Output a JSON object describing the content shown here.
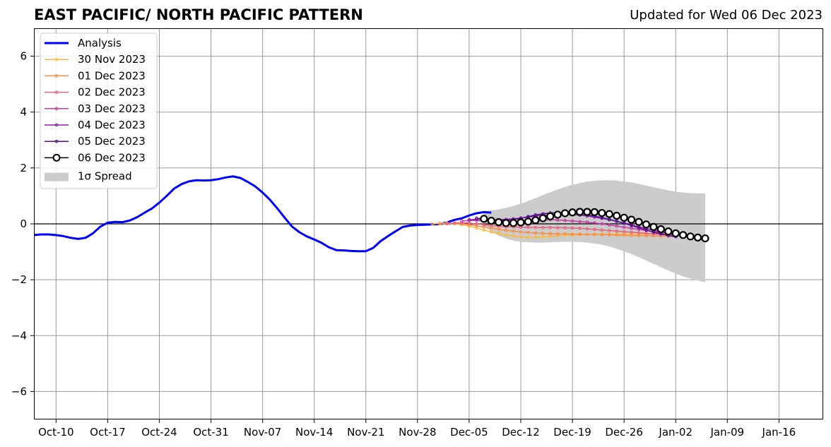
{
  "chart_data": {
    "type": "line",
    "title": "EAST PACIFIC/ NORTH PACIFIC PATTERN",
    "subtitle": "Updated for Wed 06 Dec 2023",
    "xlabel": "",
    "ylabel": "",
    "grid": true,
    "legend_placement": "top-left",
    "xlim": [
      "2023-10-07",
      "2024-01-22"
    ],
    "ylim": [
      -7,
      7
    ],
    "yticks": [
      -6,
      -4,
      -2,
      0,
      2,
      4,
      6
    ],
    "ytick_labels": [
      "−6",
      "−4",
      "−2",
      "0",
      "2",
      "4",
      "6"
    ],
    "xticks": [
      "2023-10-10",
      "2023-10-17",
      "2023-10-24",
      "2023-10-31",
      "2023-11-07",
      "2023-11-14",
      "2023-11-21",
      "2023-11-28",
      "2023-12-05",
      "2023-12-12",
      "2023-12-19",
      "2023-12-26",
      "2024-01-02",
      "2024-01-09",
      "2024-01-16"
    ],
    "xtick_labels": [
      "Oct-10",
      "Oct-17",
      "Oct-24",
      "Oct-31",
      "Nov-07",
      "Nov-14",
      "Nov-21",
      "Nov-28",
      "Dec-05",
      "Dec-12",
      "Dec-19",
      "Dec-26",
      "Jan-02",
      "Jan-09",
      "Jan-16"
    ],
    "series": [
      {
        "name": "Analysis",
        "color": "#0000ff",
        "marker": "none",
        "start": "2023-10-07",
        "values": [
          -0.4,
          -0.38,
          -0.38,
          -0.4,
          -0.44,
          -0.5,
          -0.54,
          -0.5,
          -0.34,
          -0.1,
          0.04,
          0.07,
          0.06,
          0.12,
          0.24,
          0.4,
          0.55,
          0.76,
          1.0,
          1.26,
          1.42,
          1.52,
          1.56,
          1.55,
          1.56,
          1.6,
          1.66,
          1.7,
          1.64,
          1.5,
          1.34,
          1.12,
          0.86,
          0.55,
          0.22,
          -0.1,
          -0.3,
          -0.45,
          -0.56,
          -0.68,
          -0.84,
          -0.94,
          -0.95,
          -0.97,
          -0.98,
          -0.98,
          -0.86,
          -0.62,
          -0.44,
          -0.27,
          -0.11,
          -0.06,
          -0.04,
          -0.03,
          -0.02,
          -0.01,
          0.05,
          0.14,
          0.2,
          0.3,
          0.38,
          0.42,
          0.4
        ]
      },
      {
        "name": "30 Nov 2023",
        "color": "#fcb93e",
        "marker": "small",
        "start": "2023-11-30",
        "values": [
          0.0,
          0.02,
          0.03,
          0.0,
          -0.03,
          -0.08,
          -0.15,
          -0.22,
          -0.29,
          -0.35,
          -0.4,
          -0.44,
          -0.47,
          -0.48,
          -0.48,
          -0.47,
          -0.45,
          -0.43,
          -0.41,
          -0.4,
          -0.39,
          -0.38,
          -0.37,
          -0.37,
          -0.37,
          -0.37,
          -0.37,
          -0.37,
          -0.37,
          -0.37,
          -0.37,
          -0.36,
          -0.35
        ]
      },
      {
        "name": "01 Dec 2023",
        "color": "#f98e47",
        "marker": "small",
        "start": "2023-12-01",
        "values": [
          0.0,
          0.02,
          0.02,
          0.0,
          -0.03,
          -0.07,
          -0.11,
          -0.15,
          -0.19,
          -0.23,
          -0.26,
          -0.29,
          -0.31,
          -0.33,
          -0.34,
          -0.35,
          -0.36,
          -0.36,
          -0.37,
          -0.37,
          -0.38,
          -0.38,
          -0.39,
          -0.39,
          -0.4,
          -0.41,
          -0.42,
          -0.42,
          -0.43,
          -0.43,
          -0.44,
          -0.44
        ]
      },
      {
        "name": "02 Dec 2023",
        "color": "#e5617e",
        "marker": "small",
        "start": "2023-12-02",
        "values": [
          0.0,
          0.03,
          0.04,
          0.03,
          0.0,
          -0.03,
          -0.06,
          -0.08,
          -0.1,
          -0.11,
          -0.12,
          -0.12,
          -0.13,
          -0.13,
          -0.13,
          -0.14,
          -0.14,
          -0.15,
          -0.16,
          -0.18,
          -0.2,
          -0.22,
          -0.24,
          -0.26,
          -0.28,
          -0.3,
          -0.32,
          -0.34,
          -0.36,
          -0.38,
          -0.4,
          -0.42
        ]
      },
      {
        "name": "03 Dec 2023",
        "color": "#c23b9e",
        "marker": "small",
        "start": "2023-12-04",
        "values": [
          0.1,
          0.12,
          0.12,
          0.1,
          0.08,
          0.07,
          0.07,
          0.08,
          0.1,
          0.12,
          0.14,
          0.15,
          0.15,
          0.14,
          0.12,
          0.1,
          0.08,
          0.06,
          0.03,
          0.0,
          -0.04,
          -0.08,
          -0.12,
          -0.16,
          -0.2,
          -0.24,
          -0.28,
          -0.32,
          -0.36,
          -0.4
        ]
      },
      {
        "name": "04 Dec 2023",
        "color": "#8e19a8",
        "marker": "small",
        "start": "2023-12-05",
        "values": [
          0.15,
          0.16,
          0.16,
          0.15,
          0.15,
          0.16,
          0.18,
          0.21,
          0.24,
          0.28,
          0.31,
          0.33,
          0.34,
          0.34,
          0.33,
          0.31,
          0.28,
          0.24,
          0.2,
          0.15,
          0.09,
          0.03,
          -0.04,
          -0.11,
          -0.17,
          -0.23,
          -0.29,
          -0.35,
          -0.4
        ]
      },
      {
        "name": "05 Dec 2023",
        "color": "#4f0c8c",
        "marker": "small",
        "start": "2023-12-06",
        "values": [
          0.2,
          0.18,
          0.14,
          0.12,
          0.12,
          0.15,
          0.2,
          0.26,
          0.32,
          0.36,
          0.39,
          0.4,
          0.4,
          0.39,
          0.36,
          0.32,
          0.28,
          0.22,
          0.16,
          0.09,
          0.02,
          -0.06,
          -0.14,
          -0.22,
          -0.3,
          -0.36,
          -0.42,
          -0.46
        ]
      },
      {
        "name": "06 Dec 2023",
        "color": "#000000",
        "marker": "large",
        "start": "2023-12-07",
        "values": [
          0.18,
          0.11,
          0.06,
          0.03,
          0.03,
          0.05,
          0.08,
          0.13,
          0.2,
          0.27,
          0.33,
          0.38,
          0.41,
          0.43,
          0.43,
          0.42,
          0.39,
          0.35,
          0.29,
          0.22,
          0.15,
          0.07,
          -0.02,
          -0.11,
          -0.19,
          -0.27,
          -0.34,
          -0.4,
          -0.45,
          -0.49,
          -0.52
        ]
      }
    ],
    "spread": {
      "name": "1σ Spread",
      "color": "#cccccc",
      "start": "2023-12-07",
      "upper": [
        0.45,
        0.48,
        0.52,
        0.57,
        0.64,
        0.72,
        0.82,
        0.92,
        1.03,
        1.13,
        1.23,
        1.32,
        1.4,
        1.46,
        1.51,
        1.54,
        1.56,
        1.56,
        1.55,
        1.52,
        1.48,
        1.43,
        1.37,
        1.31,
        1.25,
        1.2,
        1.15,
        1.12,
        1.1,
        1.09,
        1.09
      ],
      "lower": [
        -0.1,
        -0.27,
        -0.42,
        -0.53,
        -0.6,
        -0.64,
        -0.66,
        -0.67,
        -0.67,
        -0.66,
        -0.65,
        -0.64,
        -0.64,
        -0.65,
        -0.67,
        -0.7,
        -0.75,
        -0.81,
        -0.89,
        -0.98,
        -1.08,
        -1.19,
        -1.31,
        -1.43,
        -1.55,
        -1.67,
        -1.78,
        -1.88,
        -1.96,
        -2.03,
        -2.09
      ]
    }
  }
}
